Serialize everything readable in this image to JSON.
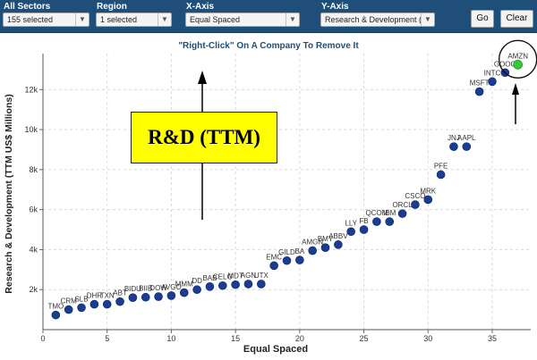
{
  "controls": {
    "sectors": {
      "label": "All Sectors",
      "value": "155 selected"
    },
    "region": {
      "label": "Region",
      "value": "1 selected"
    },
    "x_axis": {
      "label": "X-Axis",
      "value": "Equal Spaced"
    },
    "y_axis": {
      "label": "Y-Axis",
      "value": "Research & Development ("
    },
    "go_label": "Go",
    "clear_label": "Clear"
  },
  "instruction": "\"Right-Click\" On A Company To Remove It",
  "callout": "R&D (TTM)",
  "colors": {
    "marker": "#1a3d91",
    "highlight": "#33cc33",
    "header": "#1f4e79"
  },
  "chart_data": {
    "type": "scatter",
    "xlabel": "Equal Spaced",
    "ylabel": "Research & Development (TTM US$ Millions)",
    "xlim": [
      0,
      38
    ],
    "ylim": [
      0,
      13800
    ],
    "xticks": [
      0,
      5,
      10,
      15,
      20,
      25,
      30,
      35
    ],
    "yticks": [
      2000,
      4000,
      6000,
      8000,
      10000,
      12000
    ],
    "ytick_labels": [
      "2k",
      "4k",
      "6k",
      "8k",
      "10k",
      "12k"
    ],
    "grid": true,
    "highlight": "AMZN",
    "points": [
      {
        "x": 1,
        "y": 730,
        "label": "TMO"
      },
      {
        "x": 2,
        "y": 1000,
        "label": "CRM"
      },
      {
        "x": 3,
        "y": 1100,
        "label": "SLB"
      },
      {
        "x": 4,
        "y": 1270,
        "label": "DHR"
      },
      {
        "x": 5,
        "y": 1270,
        "label": "TXN"
      },
      {
        "x": 6,
        "y": 1400,
        "label": "ABT"
      },
      {
        "x": 7,
        "y": 1600,
        "label": "BIDU"
      },
      {
        "x": 8,
        "y": 1620,
        "label": "BIIB"
      },
      {
        "x": 9,
        "y": 1650,
        "label": "DOW"
      },
      {
        "x": 10,
        "y": 1700,
        "label": "AVGO"
      },
      {
        "x": 11,
        "y": 1850,
        "label": "MMM"
      },
      {
        "x": 12,
        "y": 2000,
        "label": "DD"
      },
      {
        "x": 13,
        "y": 2150,
        "label": "BAB"
      },
      {
        "x": 14,
        "y": 2200,
        "label": "CELG"
      },
      {
        "x": 15,
        "y": 2250,
        "label": "MDT"
      },
      {
        "x": 16,
        "y": 2280,
        "label": "AGN"
      },
      {
        "x": 17,
        "y": 2280,
        "label": "UTX"
      },
      {
        "x": 18,
        "y": 3200,
        "label": "EMC"
      },
      {
        "x": 19,
        "y": 3450,
        "label": "GILD"
      },
      {
        "x": 20,
        "y": 3480,
        "label": "BA"
      },
      {
        "x": 21,
        "y": 3950,
        "label": "AMGN"
      },
      {
        "x": 22,
        "y": 4100,
        "label": "BMY"
      },
      {
        "x": 23,
        "y": 4250,
        "label": "ABBV"
      },
      {
        "x": 24,
        "y": 4900,
        "label": "LLY"
      },
      {
        "x": 25,
        "y": 5000,
        "label": "FB"
      },
      {
        "x": 26,
        "y": 5400,
        "label": "QCOM"
      },
      {
        "x": 27,
        "y": 5400,
        "label": "IBM"
      },
      {
        "x": 28,
        "y": 5800,
        "label": "ORCL"
      },
      {
        "x": 29,
        "y": 6250,
        "label": "CSCO"
      },
      {
        "x": 30,
        "y": 6500,
        "label": "MRK"
      },
      {
        "x": 31,
        "y": 7750,
        "label": "PFE"
      },
      {
        "x": 32,
        "y": 9150,
        "label": "JNJ"
      },
      {
        "x": 33,
        "y": 9150,
        "label": "AAPL"
      },
      {
        "x": 34,
        "y": 11900,
        "label": "MSFT"
      },
      {
        "x": 35,
        "y": 12400,
        "label": "INTC"
      },
      {
        "x": 36,
        "y": 12850,
        "label": "GOOG"
      },
      {
        "x": 37,
        "y": 13250,
        "label": "AMZN"
      }
    ]
  }
}
